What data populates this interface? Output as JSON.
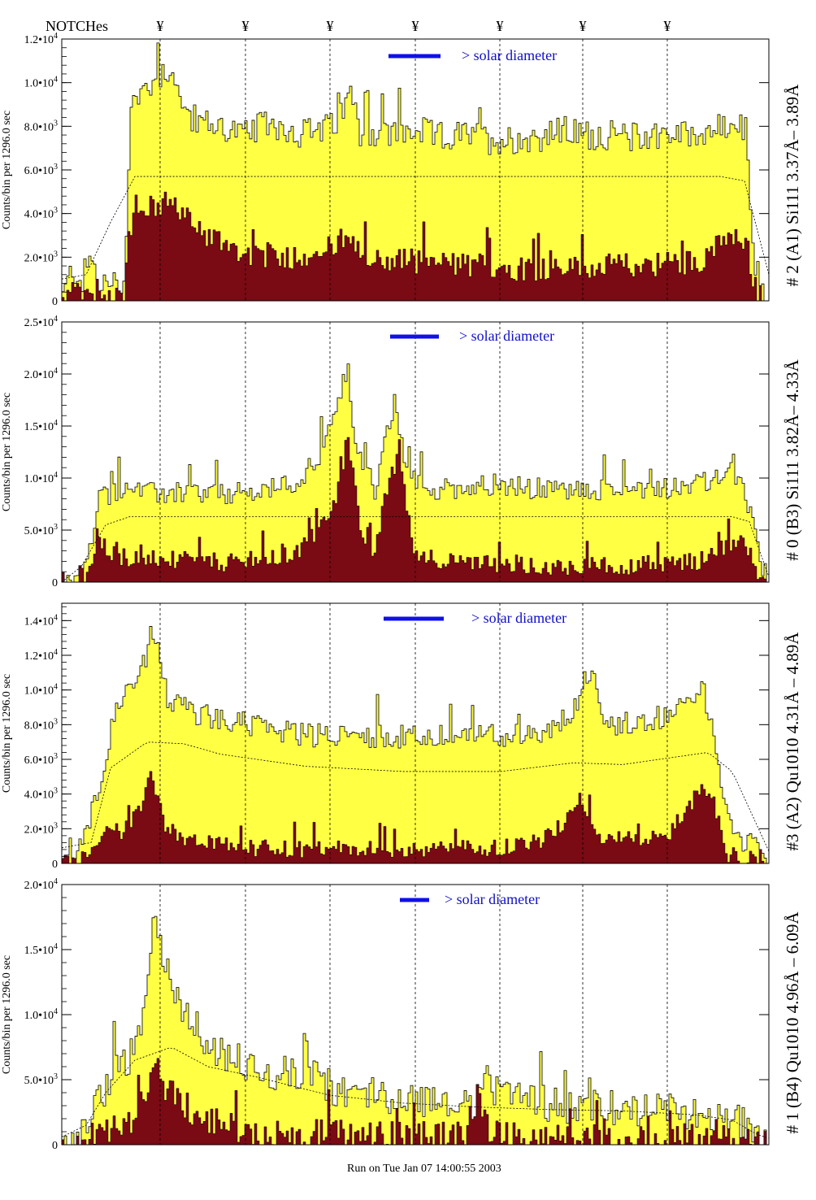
{
  "header": {
    "notches_label": "NOTCHes",
    "notch_symbol": "¥",
    "notch_count": 7
  },
  "footer": {
    "run_text": "Run on Tue Jan 07 14:00:55 2003"
  },
  "colors": {
    "total": "#ffff44",
    "component": "#7a0a14",
    "solar_bar": "#1010e8",
    "solar_text": "#1010c8"
  },
  "chart_data": [
    {
      "type": "area",
      "label": "# 2 (A1) Si111  3.37Å– 3.89Å",
      "ylabel": "Counts/bin per   1296.0 sec",
      "solar_label": "> solar diameter",
      "ylim": [
        0,
        12000
      ],
      "ticks": [
        {
          "v": 0,
          "label": "0"
        },
        {
          "v": 2000,
          "label": "2.0•10",
          "exp": "3"
        },
        {
          "v": 4000,
          "label": "4.0•10",
          "exp": "3"
        },
        {
          "v": 6000,
          "label": "6.0•10",
          "exp": "3"
        },
        {
          "v": 8000,
          "label": "8.0•10",
          "exp": "3"
        },
        {
          "v": 10000,
          "label": "1.0•10",
          "exp": "4"
        },
        {
          "v": 12000,
          "label": "1.2•10",
          "exp": "4"
        }
      ],
      "bins": 290,
      "total_envelope": [
        [
          0,
          200
        ],
        [
          4,
          1500
        ],
        [
          8,
          900
        ],
        [
          11,
          2000
        ],
        [
          15,
          800
        ],
        [
          20,
          700
        ],
        [
          25,
          800
        ],
        [
          28,
          9000
        ],
        [
          38,
          10200
        ],
        [
          45,
          10800
        ],
        [
          48,
          9000
        ],
        [
          55,
          8200
        ],
        [
          65,
          8000
        ],
        [
          75,
          7600
        ],
        [
          85,
          8200
        ],
        [
          95,
          7700
        ],
        [
          105,
          7800
        ],
        [
          112,
          8000
        ],
        [
          118,
          9500
        ],
        [
          122,
          7800
        ],
        [
          135,
          7600
        ],
        [
          145,
          7800
        ],
        [
          155,
          7500
        ],
        [
          165,
          7600
        ],
        [
          175,
          7400
        ],
        [
          185,
          7400
        ],
        [
          195,
          7500
        ],
        [
          205,
          7800
        ],
        [
          215,
          7600
        ],
        [
          225,
          7600
        ],
        [
          235,
          7500
        ],
        [
          245,
          7700
        ],
        [
          255,
          7600
        ],
        [
          265,
          7800
        ],
        [
          275,
          8000
        ],
        [
          280,
          7800
        ],
        [
          283,
          2000
        ],
        [
          288,
          400
        ],
        [
          290,
          200
        ]
      ],
      "total_noise": 700,
      "component_envelope": [
        [
          0,
          0
        ],
        [
          4,
          400
        ],
        [
          8,
          200
        ],
        [
          12,
          100
        ],
        [
          20,
          300
        ],
        [
          25,
          100
        ],
        [
          27,
          3500
        ],
        [
          35,
          4200
        ],
        [
          45,
          4600
        ],
        [
          52,
          3600
        ],
        [
          60,
          3000
        ],
        [
          75,
          2200
        ],
        [
          90,
          2000
        ],
        [
          105,
          2200
        ],
        [
          115,
          2800
        ],
        [
          125,
          1800
        ],
        [
          140,
          1900
        ],
        [
          155,
          1700
        ],
        [
          170,
          1600
        ],
        [
          185,
          1500
        ],
        [
          200,
          1500
        ],
        [
          215,
          1500
        ],
        [
          230,
          1600
        ],
        [
          245,
          1700
        ],
        [
          260,
          1800
        ],
        [
          270,
          2600
        ],
        [
          280,
          2800
        ],
        [
          284,
          600
        ],
        [
          290,
          0
        ]
      ],
      "component_noise": 600,
      "model": [
        [
          0,
          1000
        ],
        [
          10,
          1200
        ],
        [
          20,
          3600
        ],
        [
          30,
          5700
        ],
        [
          270,
          5700
        ],
        [
          280,
          5500
        ],
        [
          290,
          1200
        ]
      ]
    },
    {
      "type": "area",
      "label": "# 0 (B3) Si111  3.82Å– 4.33Å",
      "ylabel": "Counts/bin per   1296.0 sec",
      "solar_label": "> solar diameter",
      "ylim": [
        0,
        25000
      ],
      "ticks": [
        {
          "v": 0,
          "label": "0"
        },
        {
          "v": 5000,
          "label": "5.0•10",
          "exp": "3"
        },
        {
          "v": 10000,
          "label": "1.0•10",
          "exp": "4"
        },
        {
          "v": 15000,
          "label": "1.5•10",
          "exp": "4"
        },
        {
          "v": 20000,
          "label": "2.0•10",
          "exp": "4"
        },
        {
          "v": 25000,
          "label": "2.5•10",
          "exp": "4"
        }
      ],
      "bins": 290,
      "total_envelope": [
        [
          0,
          0
        ],
        [
          5,
          200
        ],
        [
          10,
          2000
        ],
        [
          15,
          8000
        ],
        [
          25,
          9200
        ],
        [
          35,
          8500
        ],
        [
          50,
          8600
        ],
        [
          65,
          8400
        ],
        [
          80,
          8600
        ],
        [
          95,
          9500
        ],
        [
          105,
          12000
        ],
        [
          112,
          16000
        ],
        [
          117,
          21000
        ],
        [
          120,
          13000
        ],
        [
          128,
          9000
        ],
        [
          132,
          13000
        ],
        [
          136,
          17000
        ],
        [
          142,
          10000
        ],
        [
          150,
          8800
        ],
        [
          165,
          9200
        ],
        [
          175,
          9400
        ],
        [
          190,
          9000
        ],
        [
          205,
          8800
        ],
        [
          220,
          8800
        ],
        [
          235,
          9000
        ],
        [
          250,
          9200
        ],
        [
          265,
          9600
        ],
        [
          275,
          10500
        ],
        [
          282,
          7000
        ],
        [
          286,
          1500
        ],
        [
          290,
          200
        ]
      ],
      "total_noise": 1100,
      "component_envelope": [
        [
          0,
          0
        ],
        [
          10,
          200
        ],
        [
          15,
          4000
        ],
        [
          22,
          2500
        ],
        [
          35,
          2200
        ],
        [
          55,
          2000
        ],
        [
          75,
          1800
        ],
        [
          95,
          2600
        ],
        [
          105,
          5000
        ],
        [
          112,
          8000
        ],
        [
          117,
          14000
        ],
        [
          122,
          5000
        ],
        [
          128,
          3000
        ],
        [
          134,
          10000
        ],
        [
          138,
          12000
        ],
        [
          144,
          3000
        ],
        [
          160,
          1800
        ],
        [
          180,
          1800
        ],
        [
          200,
          1600
        ],
        [
          220,
          1500
        ],
        [
          240,
          1700
        ],
        [
          260,
          2000
        ],
        [
          272,
          3500
        ],
        [
          280,
          4000
        ],
        [
          285,
          500
        ],
        [
          290,
          0
        ]
      ],
      "component_noise": 900,
      "model": [
        [
          0,
          0
        ],
        [
          8,
          1500
        ],
        [
          18,
          5500
        ],
        [
          28,
          6300
        ],
        [
          275,
          6300
        ],
        [
          282,
          5800
        ],
        [
          290,
          500
        ]
      ]
    },
    {
      "type": "area",
      "label": "#3 (A2) Qu1010  4.31Å – 4.89Å",
      "ylabel": "Counts/bin per   1296.0 sec",
      "solar_label": "> solar diameter",
      "ylim": [
        0,
        15000
      ],
      "ticks": [
        {
          "v": 0,
          "label": "0"
        },
        {
          "v": 2000,
          "label": "2.0•10",
          "exp": "3"
        },
        {
          "v": 4000,
          "label": "4.0•10",
          "exp": "3"
        },
        {
          "v": 6000,
          "label": "6.0•10",
          "exp": "3"
        },
        {
          "v": 8000,
          "label": "8.0•10",
          "exp": "3"
        },
        {
          "v": 10000,
          "label": "1.0•10",
          "exp": "4"
        },
        {
          "v": 12000,
          "label": "1.2•10",
          "exp": "4"
        },
        {
          "v": 14000,
          "label": "1.4•10",
          "exp": "4"
        }
      ],
      "bins": 290,
      "total_envelope": [
        [
          0,
          600
        ],
        [
          8,
          1200
        ],
        [
          15,
          4500
        ],
        [
          22,
          9200
        ],
        [
          30,
          10000
        ],
        [
          37,
          13500
        ],
        [
          43,
          9500
        ],
        [
          55,
          8600
        ],
        [
          70,
          8200
        ],
        [
          85,
          7800
        ],
        [
          100,
          7400
        ],
        [
          120,
          7400
        ],
        [
          140,
          7300
        ],
        [
          160,
          7300
        ],
        [
          180,
          7400
        ],
        [
          200,
          7600
        ],
        [
          210,
          9000
        ],
        [
          217,
          11500
        ],
        [
          222,
          8000
        ],
        [
          240,
          8200
        ],
        [
          255,
          9000
        ],
        [
          262,
          10500
        ],
        [
          267,
          7000
        ],
        [
          272,
          2800
        ],
        [
          280,
          1200
        ],
        [
          290,
          300
        ]
      ],
      "total_noise": 700,
      "component_envelope": [
        [
          0,
          0
        ],
        [
          10,
          300
        ],
        [
          18,
          2000
        ],
        [
          25,
          1800
        ],
        [
          32,
          3000
        ],
        [
          36,
          5000
        ],
        [
          42,
          2000
        ],
        [
          55,
          1200
        ],
        [
          75,
          900
        ],
        [
          100,
          800
        ],
        [
          125,
          800
        ],
        [
          150,
          800
        ],
        [
          175,
          900
        ],
        [
          195,
          1200
        ],
        [
          205,
          2200
        ],
        [
          212,
          4000
        ],
        [
          220,
          1500
        ],
        [
          235,
          1300
        ],
        [
          248,
          1600
        ],
        [
          258,
          3500
        ],
        [
          262,
          4600
        ],
        [
          267,
          3500
        ],
        [
          272,
          500
        ],
        [
          290,
          0
        ]
      ],
      "component_noise": 500,
      "model": [
        [
          0,
          900
        ],
        [
          12,
          1200
        ],
        [
          20,
          5500
        ],
        [
          35,
          7000
        ],
        [
          50,
          6900
        ],
        [
          65,
          6300
        ],
        [
          80,
          6000
        ],
        [
          100,
          5600
        ],
        [
          140,
          5300
        ],
        [
          180,
          5300
        ],
        [
          210,
          5800
        ],
        [
          230,
          5700
        ],
        [
          250,
          6100
        ],
        [
          265,
          6400
        ],
        [
          275,
          5300
        ],
        [
          290,
          700
        ]
      ]
    },
    {
      "type": "area",
      "label": "# 1 (B4) Qu1010 4.96Å – 6.09Å",
      "ylabel": "Counts/bin per   1296.0 sec",
      "solar_label": "> solar diameter",
      "ylim": [
        0,
        20000
      ],
      "ticks": [
        {
          "v": 0,
          "label": "0"
        },
        {
          "v": 5000,
          "label": "5.0•10",
          "exp": "3"
        },
        {
          "v": 10000,
          "label": "1.0•10",
          "exp": "4"
        },
        {
          "v": 15000,
          "label": "1.5•10",
          "exp": "4"
        },
        {
          "v": 20000,
          "label": "2.0•10",
          "exp": "4"
        }
      ],
      "bins": 290,
      "total_envelope": [
        [
          0,
          300
        ],
        [
          8,
          600
        ],
        [
          15,
          3500
        ],
        [
          22,
          6000
        ],
        [
          30,
          7000
        ],
        [
          35,
          12000
        ],
        [
          38,
          18500
        ],
        [
          42,
          13500
        ],
        [
          48,
          11000
        ],
        [
          55,
          9000
        ],
        [
          62,
          7000
        ],
        [
          72,
          6500
        ],
        [
          85,
          5400
        ],
        [
          100,
          5600
        ],
        [
          115,
          4000
        ],
        [
          125,
          4000
        ],
        [
          140,
          3600
        ],
        [
          155,
          3400
        ],
        [
          165,
          3200
        ],
        [
          170,
          3400
        ],
        [
          175,
          5000
        ],
        [
          180,
          3600
        ],
        [
          195,
          3200
        ],
        [
          210,
          3000
        ],
        [
          230,
          2800
        ],
        [
          250,
          2600
        ],
        [
          268,
          2200
        ],
        [
          278,
          1800
        ],
        [
          285,
          600
        ],
        [
          290,
          300
        ]
      ],
      "total_noise": 1400,
      "component_envelope": [
        [
          0,
          0
        ],
        [
          10,
          400
        ],
        [
          20,
          1200
        ],
        [
          28,
          1500
        ],
        [
          35,
          4000
        ],
        [
          38,
          7000
        ],
        [
          42,
          4500
        ],
        [
          50,
          3000
        ],
        [
          60,
          2000
        ],
        [
          75,
          1000
        ],
        [
          95,
          800
        ],
        [
          120,
          700
        ],
        [
          150,
          600
        ],
        [
          165,
          700
        ],
        [
          170,
          4000
        ],
        [
          175,
          1000
        ],
        [
          190,
          700
        ],
        [
          220,
          500
        ],
        [
          250,
          500
        ],
        [
          270,
          400
        ],
        [
          282,
          200
        ],
        [
          290,
          0
        ]
      ],
      "component_noise": 1200,
      "model": [
        [
          0,
          600
        ],
        [
          10,
          1500
        ],
        [
          18,
          4000
        ],
        [
          30,
          6500
        ],
        [
          45,
          7500
        ],
        [
          60,
          6000
        ],
        [
          80,
          5200
        ],
        [
          110,
          3800
        ],
        [
          140,
          3200
        ],
        [
          170,
          2900
        ],
        [
          200,
          2700
        ],
        [
          230,
          2600
        ],
        [
          260,
          2300
        ],
        [
          275,
          1900
        ],
        [
          285,
          800
        ],
        [
          290,
          500
        ]
      ]
    }
  ]
}
